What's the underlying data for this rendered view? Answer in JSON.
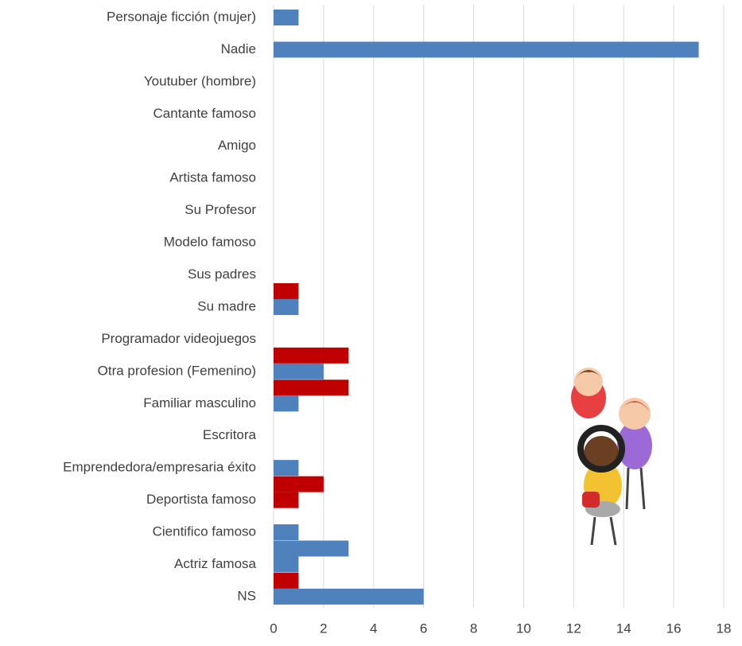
{
  "chart_data": {
    "type": "barh",
    "categories": [
      "Personaje ficción (mujer)",
      "Nadie",
      "Youtuber (hombre)",
      "Cantante famoso",
      "Amigo",
      "Artista famoso",
      "Su Profesor",
      "Modelo famoso",
      "Sus padres",
      "Su madre",
      "Programador videojuegos",
      "Otra profesion (Femenino)",
      "Familiar masculino",
      "Escritora",
      "Emprendedora/empresaria éxito",
      "Deportista famoso",
      "Cientifico famoso",
      "Actriz famosa",
      "NS"
    ],
    "series": [
      {
        "values": [
          null,
          null,
          null,
          null,
          null,
          null,
          null,
          null,
          null,
          1,
          null,
          3,
          3,
          null,
          null,
          2,
          null,
          3,
          1
        ],
        "colors": [
          null,
          null,
          null,
          null,
          null,
          null,
          null,
          null,
          null,
          "#c00000",
          null,
          "#c00000",
          "#c00000",
          null,
          null,
          "#c00000",
          null,
          "#4f81bd",
          "#c00000"
        ]
      },
      {
        "values": [
          1,
          17,
          null,
          null,
          null,
          null,
          null,
          null,
          null,
          1,
          null,
          2,
          1,
          null,
          1,
          1,
          1,
          1,
          6
        ],
        "colors": [
          "#4f81bd",
          "#4f81bd",
          null,
          null,
          null,
          null,
          null,
          null,
          null,
          "#4f81bd",
          null,
          "#4f81bd",
          "#4f81bd",
          null,
          "#4f81bd",
          "#c00000",
          "#4f81bd",
          "#4f81bd",
          "#4f81bd"
        ]
      }
    ],
    "xlim": [
      0,
      18
    ],
    "xticks": [
      0,
      2,
      4,
      6,
      8,
      10,
      12,
      14,
      16,
      18
    ],
    "grid": true
  }
}
